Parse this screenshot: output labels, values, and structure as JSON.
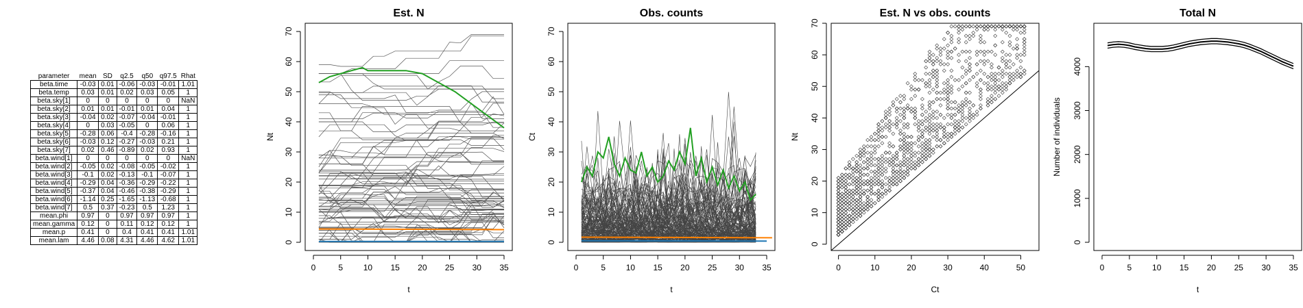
{
  "table": {
    "columns": [
      "parameter",
      "mean",
      "SD",
      "q2.5",
      "q50",
      "q97.5",
      "Rhat"
    ],
    "rows": [
      [
        "beta.time",
        "-0.03",
        "0.01",
        "-0.06",
        "-0.03",
        "-0.01",
        "1.01"
      ],
      [
        "beta.temp",
        "0.03",
        "0.01",
        "0.02",
        "0.03",
        "0.05",
        "1"
      ],
      [
        "beta.sky[1]",
        "0",
        "0",
        "0",
        "0",
        "0",
        "NaN"
      ],
      [
        "beta.sky[2]",
        "0.01",
        "0.01",
        "-0.01",
        "0.01",
        "0.04",
        "1"
      ],
      [
        "beta.sky[3]",
        "-0.04",
        "0.02",
        "-0.07",
        "-0.04",
        "-0.01",
        "1"
      ],
      [
        "beta.sky[4]",
        "0",
        "0.03",
        "-0.05",
        "0",
        "0.06",
        "1"
      ],
      [
        "beta.sky[5]",
        "-0.28",
        "0.06",
        "-0.4",
        "-0.28",
        "-0.16",
        "1"
      ],
      [
        "beta.sky[6]",
        "-0.03",
        "0.12",
        "-0.27",
        "-0.03",
        "0.21",
        "1"
      ],
      [
        "beta.sky[7]",
        "0.02",
        "0.46",
        "-0.89",
        "0.02",
        "0.93",
        "1"
      ],
      [
        "beta.wind[1]",
        "0",
        "0",
        "0",
        "0",
        "0",
        "NaN"
      ],
      [
        "beta.wind[2]",
        "-0.05",
        "0.02",
        "-0.08",
        "-0.05",
        "-0.02",
        "1"
      ],
      [
        "beta.wind[3]",
        "-0.1",
        "0.02",
        "-0.13",
        "-0.1",
        "-0.07",
        "1"
      ],
      [
        "beta.wind[4]",
        "-0.29",
        "0.04",
        "-0.36",
        "-0.29",
        "-0.22",
        "1"
      ],
      [
        "beta.wind[5]",
        "-0.37",
        "0.04",
        "-0.46",
        "-0.38",
        "-0.29",
        "1"
      ],
      [
        "beta.wind[6]",
        "-1.14",
        "0.25",
        "-1.65",
        "-1.13",
        "-0.68",
        "1"
      ],
      [
        "beta.wind[7]",
        "0.5",
        "0.37",
        "-0.23",
        "0.5",
        "1.23",
        "1"
      ],
      [
        "mean.phi",
        "0.97",
        "0",
        "0.97",
        "0.97",
        "0.97",
        "1"
      ],
      [
        "mean.gamma",
        "0.12",
        "0",
        "0.11",
        "0.12",
        "0.12",
        "1"
      ],
      [
        "mean.p",
        "0.41",
        "0",
        "0.4",
        "0.41",
        "0.41",
        "1.01"
      ],
      [
        "mean.lam",
        "4.46",
        "0.08",
        "4.31",
        "4.46",
        "4.62",
        "1.01"
      ]
    ]
  },
  "chart_data": [
    {
      "type": "line",
      "title": "Est. N",
      "xlabel": "t",
      "ylabel": "Nt",
      "xlim": [
        0,
        35
      ],
      "ylim": [
        0,
        70
      ],
      "xticks": [
        0,
        5,
        10,
        15,
        20,
        25,
        30,
        35
      ],
      "yticks": [
        0,
        10,
        20,
        30,
        40,
        50,
        60,
        70
      ],
      "series": [
        {
          "color": "#22a022",
          "x": [
            1,
            3,
            5,
            7,
            9,
            10,
            12,
            15,
            17,
            20,
            23,
            26,
            29,
            32,
            35
          ],
          "values": [
            53,
            55,
            56,
            57,
            58,
            57,
            57,
            57,
            57,
            56,
            53,
            50,
            46,
            42,
            38
          ]
        },
        {
          "color": "#ff8000",
          "x": [
            1,
            35
          ],
          "values": [
            4.4,
            4.2
          ]
        },
        {
          "color": "#1f77b4",
          "x": [
            1,
            35
          ],
          "values": [
            0.3,
            0.3
          ]
        }
      ]
    },
    {
      "type": "line",
      "title": "Obs. counts",
      "xlabel": "t",
      "ylabel": "Ct",
      "xlim": [
        0,
        35
      ],
      "ylim": [
        0,
        70
      ],
      "xticks": [
        0,
        5,
        10,
        15,
        20,
        25,
        30,
        35
      ],
      "yticks": [
        0,
        10,
        20,
        30,
        40,
        50,
        60,
        70
      ],
      "series": [
        {
          "color": "#22a022",
          "x": [
            1,
            2,
            3,
            4,
            5,
            6,
            7,
            8,
            9,
            10,
            11,
            12,
            13,
            14,
            15,
            16,
            17,
            18,
            19,
            20,
            21,
            22,
            23,
            24,
            25,
            26,
            27,
            28,
            29,
            30,
            31,
            32,
            33
          ],
          "values": [
            20,
            25,
            22,
            30,
            28,
            35,
            26,
            22,
            28,
            24,
            23,
            30,
            22,
            25,
            20,
            22,
            27,
            24,
            30,
            26,
            38,
            22,
            28,
            20,
            25,
            19,
            24,
            18,
            22,
            17,
            20,
            14,
            16
          ]
        },
        {
          "color": "#ff8000",
          "x": [
            1,
            36
          ],
          "values": [
            1.7,
            1.5
          ]
        },
        {
          "color": "#1f77b4",
          "x": [
            1,
            35
          ],
          "values": [
            0.5,
            0.4
          ]
        }
      ]
    },
    {
      "type": "scatter",
      "title": "Est. N vs obs. counts",
      "xlabel": "Ct",
      "ylabel": "Nt",
      "xlim": [
        -2,
        55
      ],
      "ylim": [
        -2,
        70
      ],
      "xticks": [
        0,
        10,
        20,
        30,
        40,
        50
      ],
      "yticks": [
        0,
        10,
        20,
        30,
        40,
        50,
        60,
        70
      ],
      "reference_line": "1:1"
    },
    {
      "type": "line",
      "title": "Total N",
      "xlabel": "t",
      "ylabel": "Number of individuals",
      "xlim": [
        0,
        35
      ],
      "ylim": [
        0,
        4800
      ],
      "xticks": [
        0,
        5,
        10,
        15,
        20,
        25,
        30,
        35
      ],
      "yticks": [
        0,
        1000,
        2000,
        3000,
        4000
      ],
      "series": [
        {
          "x": [
            1,
            2,
            3,
            4,
            5,
            6,
            7,
            8,
            9,
            10,
            11,
            12,
            13,
            14,
            15,
            16,
            17,
            18,
            19,
            20,
            21,
            22,
            23,
            24,
            25,
            26,
            27,
            28,
            29,
            30,
            31,
            32,
            33,
            34,
            35
          ],
          "values": [
            4480,
            4500,
            4510,
            4500,
            4480,
            4450,
            4430,
            4410,
            4400,
            4400,
            4400,
            4410,
            4430,
            4460,
            4490,
            4520,
            4540,
            4560,
            4570,
            4580,
            4580,
            4570,
            4560,
            4540,
            4520,
            4490,
            4450,
            4400,
            4350,
            4290,
            4230,
            4170,
            4110,
            4060,
            4010
          ]
        }
      ],
      "band_lower_offset": -60,
      "band_upper_offset": 60
    }
  ]
}
